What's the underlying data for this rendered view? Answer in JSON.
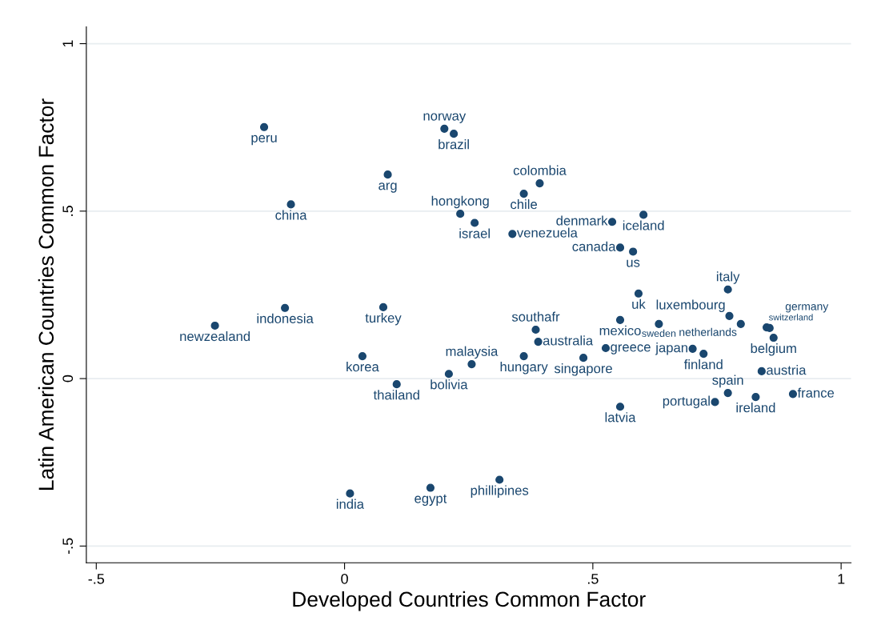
{
  "chart_data": {
    "type": "scatter",
    "xlabel": "Developed Countries Common Factor",
    "ylabel": "Latin American Countries Common Factor",
    "xlim": [
      -0.52,
      1.02
    ],
    "ylim": [
      -0.55,
      1.05
    ],
    "xticks": [
      {
        "value": -0.5,
        "label": "-.5"
      },
      0,
      {
        "value": 0.5,
        "label": ".5"
      },
      1
    ],
    "yticks": [
      {
        "value": -0.5,
        "label": "-.5"
      },
      0,
      {
        "value": 0.5,
        "label": ".5"
      },
      1
    ],
    "grid": "y",
    "legend": false,
    "marker": "circle",
    "series": [
      {
        "name": "peru",
        "color": "#1a476f",
        "x": [
          -0.162
        ],
        "values": [
          0.751
        ]
      },
      {
        "name": "norway",
        "color": "#1a476f",
        "x": [
          0.201
        ],
        "values": [
          0.746
        ]
      },
      {
        "name": "brazil",
        "color": "#1a476f",
        "x": [
          0.22
        ],
        "values": [
          0.731
        ]
      },
      {
        "name": "arg",
        "color": "#1a476f",
        "x": [
          0.087
        ],
        "values": [
          0.609
        ]
      },
      {
        "name": "china",
        "color": "#1a476f",
        "x": [
          -0.108
        ],
        "values": [
          0.52
        ]
      },
      {
        "name": "colombia",
        "color": "#1a476f",
        "x": [
          0.393
        ],
        "values": [
          0.583
        ]
      },
      {
        "name": "chile",
        "color": "#1a476f",
        "x": [
          0.361
        ],
        "values": [
          0.552
        ]
      },
      {
        "name": "hongkong",
        "color": "#1a476f",
        "x": [
          0.233
        ],
        "values": [
          0.492
        ]
      },
      {
        "name": "israel",
        "color": "#1a476f",
        "x": [
          0.262
        ],
        "values": [
          0.465
        ]
      },
      {
        "name": "venezuela",
        "color": "#1a476f",
        "x": [
          0.338
        ],
        "values": [
          0.432
        ]
      },
      {
        "name": "denmark",
        "color": "#1a476f",
        "x": [
          0.539
        ],
        "values": [
          0.468
        ]
      },
      {
        "name": "iceland",
        "color": "#1a476f",
        "x": [
          0.602
        ],
        "values": [
          0.489
        ]
      },
      {
        "name": "canada",
        "color": "#1a476f",
        "x": [
          0.555
        ],
        "values": [
          0.391
        ]
      },
      {
        "name": "us",
        "color": "#1a476f",
        "x": [
          0.581
        ],
        "values": [
          0.379
        ]
      },
      {
        "name": "indonesia",
        "color": "#1a476f",
        "x": [
          -0.12
        ],
        "values": [
          0.211
        ]
      },
      {
        "name": "newzealand",
        "color": "#1a476f",
        "x": [
          -0.261
        ],
        "values": [
          0.158
        ]
      },
      {
        "name": "turkey",
        "color": "#1a476f",
        "x": [
          0.078
        ],
        "values": [
          0.213
        ]
      },
      {
        "name": "korea",
        "color": "#1a476f",
        "x": [
          0.036
        ],
        "values": [
          0.067
        ]
      },
      {
        "name": "thailand",
        "color": "#1a476f",
        "x": [
          0.105
        ],
        "values": [
          -0.017
        ]
      },
      {
        "name": "bolivia",
        "color": "#1a476f",
        "x": [
          0.21
        ],
        "values": [
          0.014
        ]
      },
      {
        "name": "malaysia",
        "color": "#1a476f",
        "x": [
          0.256
        ],
        "values": [
          0.043
        ]
      },
      {
        "name": "southafr",
        "color": "#1a476f",
        "x": [
          0.385
        ],
        "values": [
          0.146
        ]
      },
      {
        "name": "australia",
        "color": "#1a476f",
        "x": [
          0.39
        ],
        "values": [
          0.11
        ]
      },
      {
        "name": "hungary",
        "color": "#1a476f",
        "x": [
          0.361
        ],
        "values": [
          0.067
        ]
      },
      {
        "name": "singapore",
        "color": "#1a476f",
        "x": [
          0.481
        ],
        "values": [
          0.062
        ]
      },
      {
        "name": "greece",
        "color": "#1a476f",
        "x": [
          0.526
        ],
        "values": [
          0.091
        ]
      },
      {
        "name": "mexico",
        "color": "#1a476f",
        "x": [
          0.555
        ],
        "values": [
          0.175
        ]
      },
      {
        "name": "uk",
        "color": "#1a476f",
        "x": [
          0.592
        ],
        "values": [
          0.254
        ]
      },
      {
        "name": "latvia",
        "color": "#1a476f",
        "x": [
          0.555
        ],
        "values": [
          -0.084
        ]
      },
      {
        "name": "india",
        "color": "#1a476f",
        "x": [
          0.011
        ],
        "values": [
          -0.343
        ]
      },
      {
        "name": "egypt",
        "color": "#1a476f",
        "x": [
          0.173
        ],
        "values": [
          -0.326
        ]
      },
      {
        "name": "phillipines",
        "color": "#1a476f",
        "x": [
          0.312
        ],
        "values": [
          -0.302
        ]
      },
      {
        "name": "italy",
        "color": "#1a476f",
        "x": [
          0.772
        ],
        "values": [
          0.266
        ]
      },
      {
        "name": "sweden",
        "color": "#1a476f",
        "x": [
          0.633
        ],
        "values": [
          0.163
        ]
      },
      {
        "name": "luxembourg",
        "color": "#1a476f",
        "x": [
          0.775
        ],
        "values": [
          0.187
        ]
      },
      {
        "name": "netherlands",
        "color": "#1a476f",
        "x": [
          0.798
        ],
        "values": [
          0.163
        ]
      },
      {
        "name": "switzerland",
        "color": "#1a476f",
        "x": [
          0.85
        ],
        "values": [
          0.153
        ]
      },
      {
        "name": "germany",
        "color": "#1a476f",
        "x": [
          0.856
        ],
        "values": [
          0.151
        ]
      },
      {
        "name": "belgium",
        "color": "#1a476f",
        "x": [
          0.864
        ],
        "values": [
          0.122
        ]
      },
      {
        "name": "japan",
        "color": "#1a476f",
        "x": [
          0.701
        ],
        "values": [
          0.089
        ]
      },
      {
        "name": "finland",
        "color": "#1a476f",
        "x": [
          0.723
        ],
        "values": [
          0.074
        ]
      },
      {
        "name": "austria",
        "color": "#1a476f",
        "x": [
          0.84
        ],
        "values": [
          0.022
        ]
      },
      {
        "name": "spain",
        "color": "#1a476f",
        "x": [
          0.772
        ],
        "values": [
          -0.043
        ]
      },
      {
        "name": "portugal",
        "color": "#1a476f",
        "x": [
          0.746
        ],
        "values": [
          -0.07
        ]
      },
      {
        "name": "ireland",
        "color": "#1a476f",
        "x": [
          0.828
        ],
        "values": [
          -0.055
        ]
      },
      {
        "name": "france",
        "color": "#1a476f",
        "x": [
          0.903
        ],
        "values": [
          -0.046
        ]
      }
    ]
  }
}
